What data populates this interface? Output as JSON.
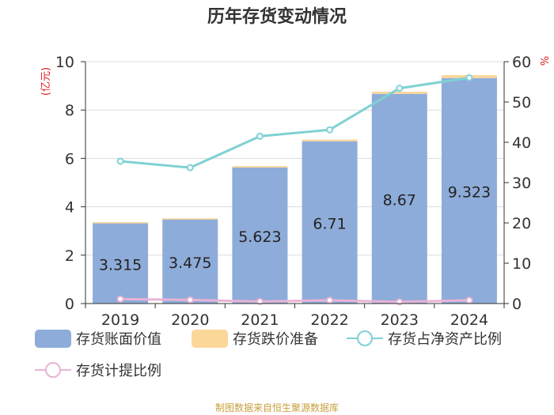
{
  "chart_data": {
    "type": "bar",
    "title": "历年存货变动情况",
    "categories": [
      "2019",
      "2020",
      "2021",
      "2022",
      "2023",
      "2024"
    ],
    "y_left": {
      "unit": "(亿元)",
      "range": [
        0,
        10
      ],
      "ticks": [
        0,
        2,
        4,
        6,
        8,
        10
      ]
    },
    "y_right": {
      "unit": "%",
      "range": [
        0,
        60
      ],
      "ticks": [
        0,
        10,
        20,
        30,
        40,
        50,
        60
      ]
    },
    "series": [
      {
        "name": "存货账面价值",
        "kind": "bar",
        "axis": "left",
        "color": "#8eacd9",
        "values": [
          3.315,
          3.475,
          5.623,
          6.71,
          8.67,
          9.323
        ],
        "labels": [
          "3.315",
          "3.475",
          "5.623",
          "6.71",
          "8.67",
          "9.323"
        ]
      },
      {
        "name": "存货跌价准备",
        "kind": "bar-stacked",
        "axis": "left",
        "color": "#fbd79a",
        "values": [
          0.05,
          0.05,
          0.06,
          0.07,
          0.09,
          0.12
        ]
      },
      {
        "name": "存货占净资产比例",
        "kind": "line",
        "axis": "right",
        "color": "#7fd1d4",
        "values": [
          35.3,
          33.7,
          41.5,
          43.1,
          53.4,
          56.0
        ]
      },
      {
        "name": "存货计提比例",
        "kind": "line",
        "axis": "right",
        "color": "#e9b3d6",
        "values": [
          1.1,
          0.9,
          0.5,
          0.8,
          0.4,
          0.8
        ]
      }
    ],
    "grid": true,
    "legend_position": "bottom"
  },
  "footer": {
    "source": "制图数据来自恒生聚源数据库"
  }
}
